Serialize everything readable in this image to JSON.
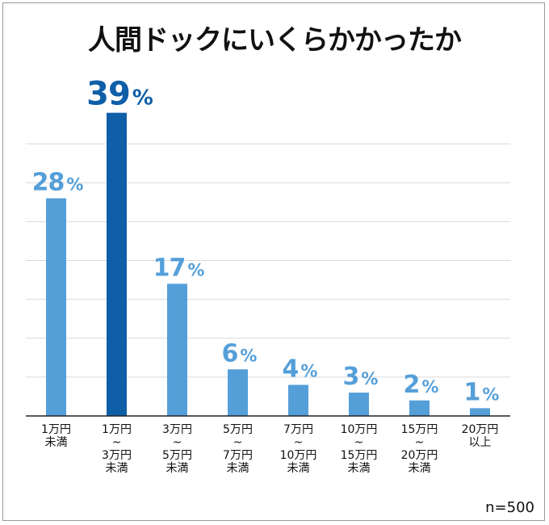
{
  "title": "人間ドックにいくらかかったか",
  "sample_size": "n=500",
  "colors": {
    "bar": "#559fd9",
    "highlight": "#0f5ea8",
    "label": "#559fd9",
    "highlight_label": "#0f5ea8",
    "grid": "#d9d9d9",
    "axis": "#222222"
  },
  "chart_data": {
    "type": "bar",
    "title": "人間ドックにいくらかかったか",
    "categories": [
      [
        "1万円",
        "未満"
      ],
      [
        "1万円",
        "~",
        "3万円",
        "未満"
      ],
      [
        "3万円",
        "~",
        "5万円",
        "未満"
      ],
      [
        "5万円",
        "~",
        "7万円",
        "未満"
      ],
      [
        "7万円",
        "~",
        "10万円",
        "未満"
      ],
      [
        "10万円",
        "~",
        "15万円",
        "未満"
      ],
      [
        "15万円",
        "~",
        "20万円",
        "未満"
      ],
      [
        "20万円",
        "以上"
      ]
    ],
    "values": [
      28,
      39,
      17,
      6,
      4,
      3,
      2,
      1
    ],
    "value_labels": [
      "28",
      "39",
      "17",
      "6",
      "4",
      "3",
      "2",
      "1"
    ],
    "unit": "%",
    "highlight_index": 1,
    "ylim": [
      0,
      40
    ],
    "grid": true,
    "legend": "none"
  }
}
